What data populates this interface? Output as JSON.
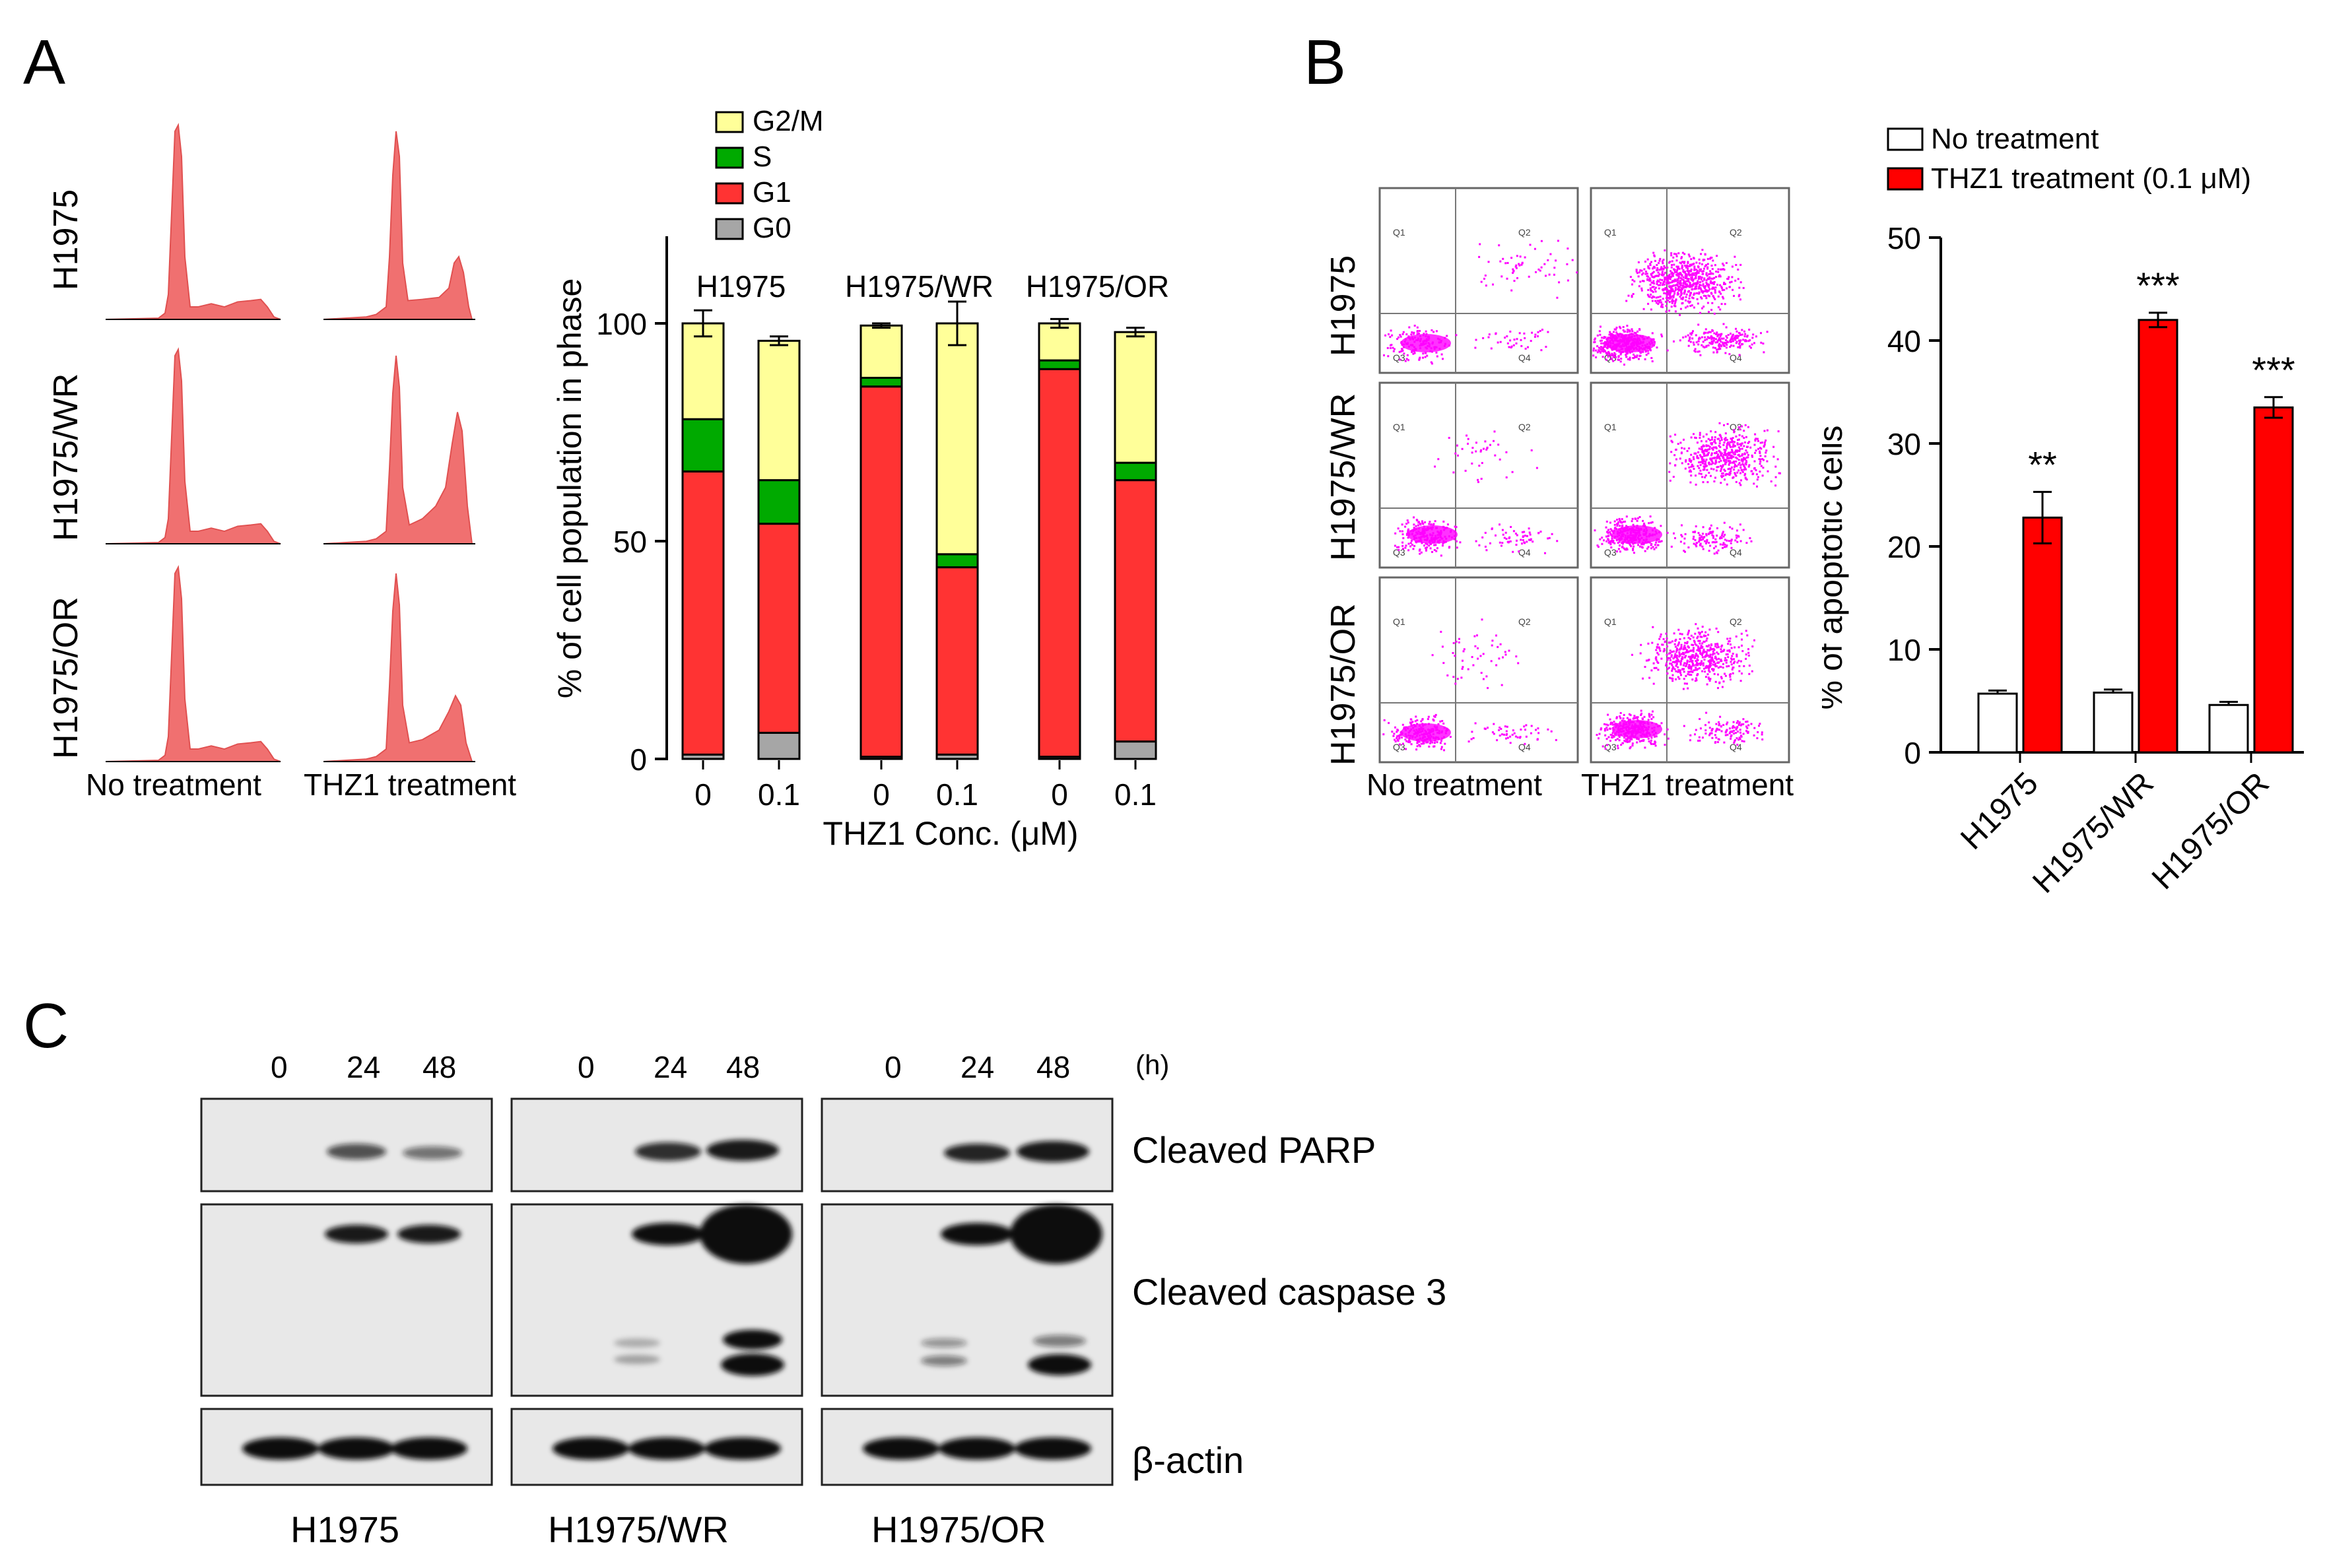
{
  "panels": {
    "a": "A",
    "b": "B",
    "c": "C"
  },
  "panelA": {
    "row_labels": [
      "H1975",
      "H1975/WR",
      "H1975/OR"
    ],
    "col_labels": [
      "No treatment",
      "THZ1 treatment"
    ]
  },
  "panelB": {
    "row_labels": [
      "H1975",
      "H1975/WR",
      "H1975/OR"
    ],
    "col_labels": [
      "No treatment",
      "THZ1 treatment"
    ],
    "quadrants": [
      "Q1",
      "Q2",
      "Q3",
      "Q4"
    ]
  },
  "panelC": {
    "timepoints": [
      "0",
      "24",
      "48"
    ],
    "unit": "(h)",
    "blot_labels": [
      "Cleaved PARP",
      "Cleaved caspase 3",
      "β-actin"
    ],
    "cell_lines": [
      "H1975",
      "H1975/WR",
      "H1975/OR"
    ]
  },
  "colors": {
    "g2m": "#ffff99",
    "s": "#00aa00",
    "g1": "#ff3333",
    "g0": "#a6a6a6",
    "thz1": "#ff0000",
    "hist": "#f07070",
    "dot": "#ff00ff"
  },
  "chart_data": [
    {
      "type": "bar",
      "stacked": true,
      "title": "",
      "groups": [
        "H1975",
        "H1975/WR",
        "H1975/OR"
      ],
      "categories": [
        "0",
        "0.1",
        "0",
        "0.1",
        "0",
        "0.1"
      ],
      "xlabel": "THZ1 Conc. (μM)",
      "ylabel": "% of cell population in phase",
      "ylim": [
        0,
        120
      ],
      "yticks": [
        "0",
        "50",
        "100"
      ],
      "legend": [
        "G2/M",
        "S",
        "G1",
        "G0"
      ],
      "series": [
        {
          "name": "G0",
          "values": [
            1,
            6,
            0.5,
            1,
            0.5,
            4
          ]
        },
        {
          "name": "G1",
          "values": [
            65,
            48,
            85,
            43,
            89,
            60
          ]
        },
        {
          "name": "S",
          "values": [
            12,
            10,
            2,
            3,
            2,
            4
          ]
        },
        {
          "name": "G2/M",
          "values": [
            22,
            32,
            12,
            53,
            8.5,
            30
          ]
        }
      ],
      "errors": [
        3,
        1,
        0.5,
        5,
        1,
        1
      ]
    },
    {
      "type": "bar",
      "title": "",
      "categories": [
        "H1975",
        "H1975/WR",
        "H1975/OR"
      ],
      "xlabel": "",
      "ylabel": "% of apoptotic cells",
      "ylim": [
        0,
        50
      ],
      "yticks": [
        "0",
        "10",
        "20",
        "30",
        "40",
        "50"
      ],
      "series": [
        {
          "name": "No treatment",
          "values": [
            5.7,
            5.8,
            4.6
          ],
          "errors": [
            0.3,
            0.3,
            0.3
          ]
        },
        {
          "name": "THZ1 treatment (0.1 μM)",
          "values": [
            22.8,
            42,
            33.5
          ],
          "errors": [
            2.5,
            0.7,
            1.0
          ]
        }
      ],
      "significance": [
        "**",
        "***",
        "***"
      ]
    }
  ]
}
